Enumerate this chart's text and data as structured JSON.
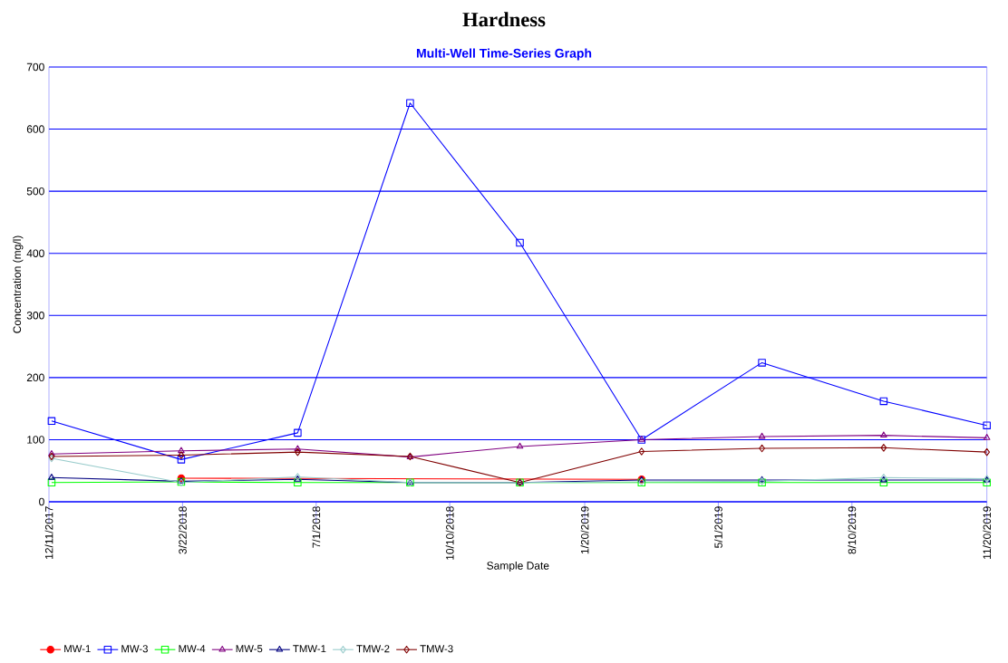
{
  "chart_data": {
    "type": "line",
    "title": "Hardness",
    "subtitle": "Multi-Well Time-Series Graph",
    "xlabel": "Sample Date",
    "ylabel": "Concentration (mg/l)",
    "x": [
      "2017-12-13",
      "2018-03-21",
      "2018-06-17",
      "2018-09-10",
      "2018-12-02",
      "2019-03-04",
      "2019-06-03",
      "2019-09-03",
      "2019-11-20"
    ],
    "series": [
      {
        "name": "MW-1",
        "color": "#ff0000",
        "marker": "circle",
        "values": [
          null,
          38,
          null,
          null,
          null,
          36,
          null,
          null,
          null
        ]
      },
      {
        "name": "MW-3",
        "color": "#0000ff",
        "marker": "square",
        "values": [
          130,
          68,
          111,
          642,
          417,
          100,
          224,
          162,
          123
        ]
      },
      {
        "name": "MW-4",
        "color": "#00ff00",
        "marker": "square",
        "values": [
          31,
          32,
          31,
          31,
          31,
          31,
          31,
          31,
          31
        ]
      },
      {
        "name": "MW-5",
        "color": "#800080",
        "marker": "triangle",
        "values": [
          77,
          82,
          85,
          72,
          89,
          100,
          105,
          107,
          103
        ]
      },
      {
        "name": "TMW-1",
        "color": "#000080",
        "marker": "triangle",
        "values": [
          39,
          33,
          36,
          31,
          31,
          35,
          35,
          35,
          35
        ]
      },
      {
        "name": "TMW-2",
        "color": "#99cccc",
        "marker": "diamond",
        "values": [
          70,
          31,
          40,
          31,
          31,
          32,
          33,
          39,
          37
        ]
      },
      {
        "name": "TMW-3",
        "color": "#800000",
        "marker": "diamond",
        "values": [
          73,
          75,
          80,
          73,
          31,
          81,
          86,
          87,
          80
        ]
      }
    ],
    "xlim": [
      "2017-12-11",
      "2019-11-20"
    ],
    "xticks": [
      {
        "value": "2017-12-11",
        "label": "12/11/2017"
      },
      {
        "value": "2018-03-22",
        "label": "3/22/2018"
      },
      {
        "value": "2018-07-01",
        "label": "7/1/2018"
      },
      {
        "value": "2018-10-10",
        "label": "10/10/2018"
      },
      {
        "value": "2019-01-20",
        "label": "1/20/2019"
      },
      {
        "value": "2019-05-01",
        "label": "5/1/2019"
      },
      {
        "value": "2019-08-10",
        "label": "8/10/2019"
      },
      {
        "value": "2019-11-20",
        "label": "11/20/2019"
      }
    ],
    "ylim": [
      0,
      700
    ],
    "yticks": [
      0,
      100,
      200,
      300,
      400,
      500,
      600,
      700
    ],
    "grid": "y",
    "legend": "bottom left",
    "line_style": "solid"
  }
}
